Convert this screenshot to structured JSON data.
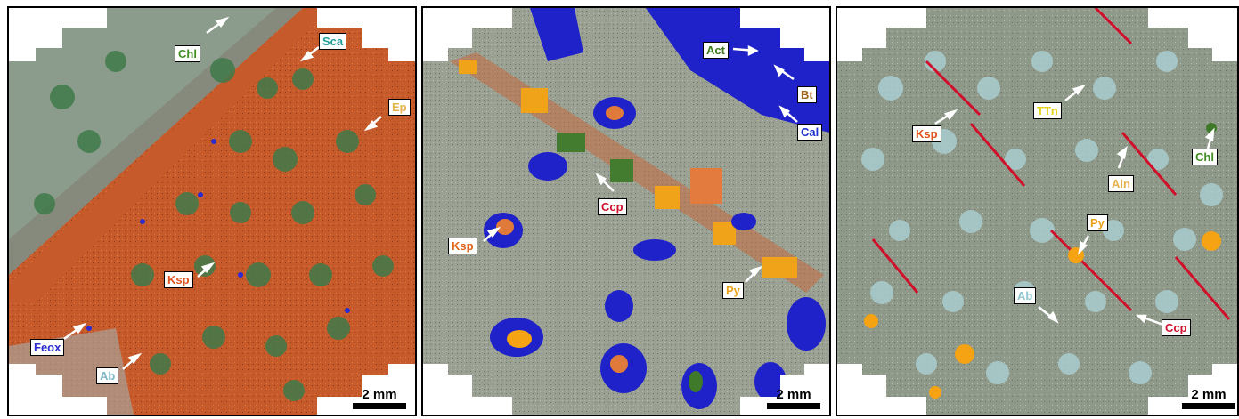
{
  "scale_bar": "2 mm",
  "colors": {
    "ksp_field": "#c75a2a",
    "green_grains": "#3f7a4a",
    "matrix_gray": "#9aa092",
    "blue_cal": "#1f22c8",
    "orange_py": "#f5a313",
    "red_ccp": "#d0102a",
    "pale_ab": "#a9cdd0"
  },
  "panels": [
    {
      "labels": [
        {
          "text": "Chl",
          "color": "#3f8f1f"
        },
        {
          "text": "Sca",
          "color": "#1f9f9a"
        },
        {
          "text": "Ep",
          "color": "#e6b24c"
        },
        {
          "text": "Ksp",
          "color": "#e0531a"
        },
        {
          "text": "Feox",
          "color": "#2b2bd0"
        },
        {
          "text": "Ab",
          "color": "#7fb6c8"
        }
      ]
    },
    {
      "labels": [
        {
          "text": "Act",
          "color": "#3d7a1a"
        },
        {
          "text": "Bt",
          "color": "#a0661e"
        },
        {
          "text": "Cal",
          "color": "#1f2fd0"
        },
        {
          "text": "Ccp",
          "color": "#d0102a"
        },
        {
          "text": "Ksp",
          "color": "#e0631a"
        },
        {
          "text": "Py",
          "color": "#e9a21a"
        }
      ]
    },
    {
      "labels": [
        {
          "text": "TTn",
          "color": "#e6d21a"
        },
        {
          "text": "Ksp",
          "color": "#e0531a"
        },
        {
          "text": "Aln",
          "color": "#e6b24c"
        },
        {
          "text": "Chl",
          "color": "#3f8f1f"
        },
        {
          "text": "Py",
          "color": "#e9a21a"
        },
        {
          "text": "Ab",
          "color": "#8fc6cf"
        },
        {
          "text": "Ccp",
          "color": "#d0102a"
        }
      ]
    }
  ]
}
